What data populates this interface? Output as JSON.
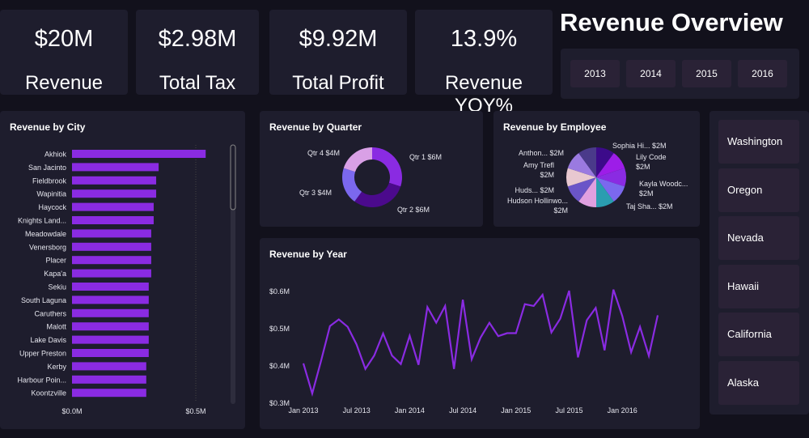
{
  "header": {
    "title": "Revenue Overview"
  },
  "kpis": [
    {
      "value": "$20M",
      "label": "Revenue"
    },
    {
      "value": "$2.98M",
      "label": "Total Tax"
    },
    {
      "value": "$9.92M",
      "label": "Total Profit"
    },
    {
      "value": "13.9%",
      "label": "Revenue YOY%"
    }
  ],
  "year_slicer": [
    "2013",
    "2014",
    "2015",
    "2016"
  ],
  "state_slicer": [
    "Washington",
    "Oregon",
    "Nevada",
    "Hawaii",
    "California",
    "Alaska"
  ],
  "colors": {
    "accent": "#8a2be2",
    "card": "#1e1d2d",
    "background": "#12111c"
  },
  "chart_data": [
    {
      "type": "bar",
      "orientation": "horizontal",
      "title": "Revenue by City",
      "categories": [
        "Akhiok",
        "San Jacinto",
        "Fieldbrook",
        "Wapinitia",
        "Haycock",
        "Knights Land...",
        "Meadowdale",
        "Venersborg",
        "Placer",
        "Kapa'a",
        "Sekiu",
        "South Laguna",
        "Caruthers",
        "Malott",
        "Lake Davis",
        "Upper Preston",
        "Kerby",
        "Harbour Poin...",
        "Koontzville"
      ],
      "values": [
        0.54,
        0.35,
        0.34,
        0.34,
        0.33,
        0.33,
        0.32,
        0.32,
        0.32,
        0.32,
        0.31,
        0.31,
        0.31,
        0.31,
        0.31,
        0.31,
        0.3,
        0.3,
        0.3
      ],
      "xlim": [
        0,
        0.6
      ],
      "tick_labels": [
        "$0.0M",
        "$0.5M"
      ],
      "ticks": [
        0,
        0.5
      ],
      "color": "#8a2be2"
    },
    {
      "type": "pie",
      "subtype": "donut",
      "title": "Revenue by Quarter",
      "categories": [
        "Qtr 1",
        "Qtr 2",
        "Qtr 3",
        "Qtr 4"
      ],
      "values": [
        6,
        6,
        4,
        4
      ],
      "labels": [
        "Qtr 1 $6M",
        "Qtr 2 $6M",
        "Qtr 3 $4M",
        "Qtr 4 $4M"
      ],
      "colors": [
        "#8a2be2",
        "#4b0a8c",
        "#7b68ee",
        "#d9a0e6"
      ]
    },
    {
      "type": "pie",
      "title": "Revenue by Employee",
      "labels": [
        "Sophia Hi... $2M",
        "Lily Code $2M",
        "Kayla Woodc... $2M",
        "",
        "Taj Sha... $2M",
        "Hudson Hollinwo... $2M",
        "Huds... $2M",
        "Amy Trefl $2M",
        "Anthon... $2M",
        ""
      ],
      "values": [
        2,
        2,
        2,
        2,
        2,
        2,
        2,
        2,
        2,
        2
      ],
      "colors": [
        "#3c0a8a",
        "#9d1de8",
        "#8a2be2",
        "#7b68ee",
        "#2a9db0",
        "#e0a0e0",
        "#6a55c8",
        "#e8c8d0",
        "#9a7ae0",
        "#4a3a8a"
      ]
    },
    {
      "type": "line",
      "title": "Revenue by Year",
      "x_start": "Jan 2013",
      "x_interval": "month",
      "x_tick_labels": [
        "Jan 2013",
        "Jul 2013",
        "Jan 2014",
        "Jul 2014",
        "Jan 2015",
        "Jul 2015",
        "Jan 2016"
      ],
      "y_tick_labels": [
        "$0.3M",
        "$0.4M",
        "$0.5M",
        "$0.6M"
      ],
      "ylim": [
        0.3,
        0.6
      ],
      "color": "#8a2be2",
      "values": [
        0.407,
        0.326,
        0.414,
        0.507,
        0.525,
        0.505,
        0.458,
        0.392,
        0.428,
        0.487,
        0.428,
        0.405,
        0.481,
        0.403,
        0.558,
        0.516,
        0.561,
        0.392,
        0.578,
        0.418,
        0.476,
        0.516,
        0.48,
        0.488,
        0.488,
        0.566,
        0.561,
        0.591,
        0.49,
        0.527,
        0.602,
        0.423,
        0.523,
        0.556,
        0.442,
        0.605,
        0.534,
        0.437,
        0.505,
        0.427,
        0.536
      ]
    }
  ]
}
